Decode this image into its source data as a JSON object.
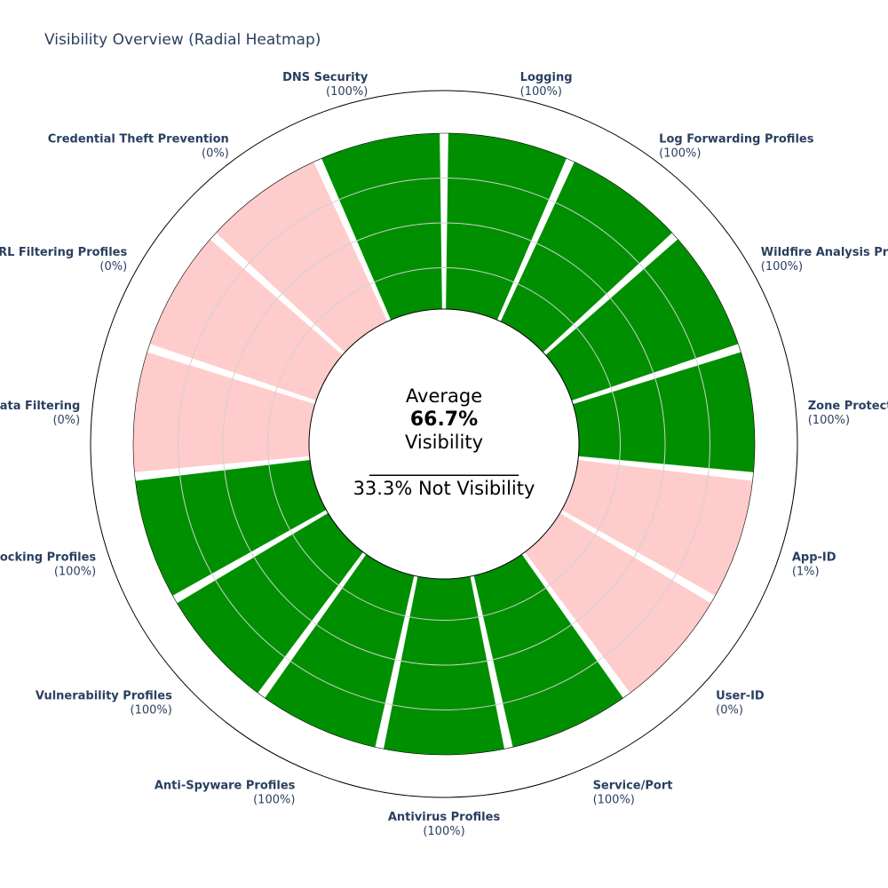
{
  "chart_data": {
    "type": "radial-heatmap",
    "title": "Visibility Overview (Radial Heatmap)",
    "rings": 4,
    "grid": true,
    "colors": {
      "visible": "#008f00",
      "not_visible": "#ffcccc",
      "grid": "#d0d0d0",
      "outline": "#000000",
      "label": "#2a3f5f"
    },
    "segments": [
      {
        "label": "Logging",
        "value": 100,
        "pct_text": "(100%)"
      },
      {
        "label": "Log Forwarding Profiles",
        "value": 100,
        "pct_text": "(100%)"
      },
      {
        "label": "Wildfire Analysis Profiles",
        "value": 100,
        "pct_text": "(100%)"
      },
      {
        "label": "Zone Protection",
        "value": 100,
        "pct_text": "(100%)"
      },
      {
        "label": "App-ID",
        "value": 1,
        "pct_text": "(1%)"
      },
      {
        "label": "User-ID",
        "value": 0,
        "pct_text": "(0%)"
      },
      {
        "label": "Service/Port",
        "value": 100,
        "pct_text": "(100%)"
      },
      {
        "label": "Antivirus Profiles",
        "value": 100,
        "pct_text": "(100%)"
      },
      {
        "label": "Anti-Spyware Profiles",
        "value": 100,
        "pct_text": "(100%)"
      },
      {
        "label": "Vulnerability Profiles",
        "value": 100,
        "pct_text": "(100%)"
      },
      {
        "label": "File Blocking Profiles",
        "value": 100,
        "pct_text": "(100%)"
      },
      {
        "label": "Data Filtering",
        "value": 0,
        "pct_text": "(0%)"
      },
      {
        "label": "URL Filtering Profiles",
        "value": 0,
        "pct_text": "(0%)"
      },
      {
        "label": "Credential Theft Prevention",
        "value": 0,
        "pct_text": "(0%)"
      },
      {
        "label": "DNS Security",
        "value": 100,
        "pct_text": "(100%)"
      }
    ],
    "center": {
      "line1": "Average",
      "value": "66.7%",
      "line3": "Visibility",
      "divider": "________________",
      "line5": "33.3% Not Visibility"
    }
  }
}
